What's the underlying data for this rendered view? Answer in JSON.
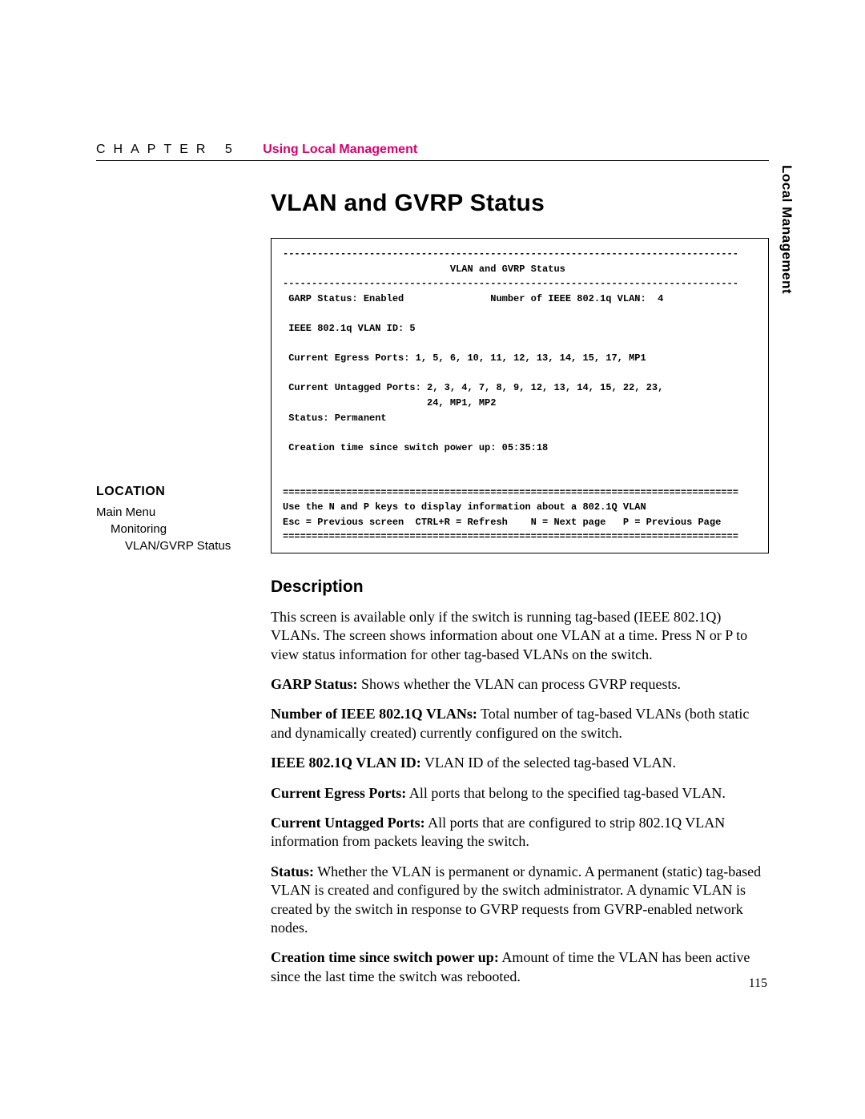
{
  "header": {
    "chapter_label": "CHAPTER 5",
    "chapter_title": "Using Local Management"
  },
  "side_tab": "Local Management",
  "main_title": "VLAN and GVRP Status",
  "terminal": {
    "dash_top": "-------------------------------------------------------------------------------",
    "title_line": "                             VLAN and GVRP Status",
    "dash_mid": "-------------------------------------------------------------------------------",
    "garp_line": " GARP Status: Enabled               Number of IEEE 802.1q VLAN:  4",
    "vlan_id_line": " IEEE 802.1q VLAN ID: 5",
    "egress_line": " Current Egress Ports: 1, 5, 6, 10, 11, 12, 13, 14, 15, 17, MP1",
    "untagged_line1": " Current Untagged Ports: 2, 3, 4, 7, 8, 9, 12, 13, 14, 15, 22, 23,",
    "untagged_line2": "                         24, MP1, MP2",
    "status_line": " Status: Permanent",
    "creation_line": " Creation time since switch power up: 05:35:18",
    "eq_top": "===============================================================================",
    "help_line": "Use the N and P keys to display information about a 802.1Q VLAN",
    "nav_line": "Esc = Previous screen  CTRL+R = Refresh    N = Next page   P = Previous Page",
    "eq_bot": "==============================================================================="
  },
  "location": {
    "heading": "LOCATION",
    "item1": "Main Menu",
    "item2": "Monitoring",
    "item3": "VLAN/GVRP Status"
  },
  "description": {
    "heading": "Description",
    "intro": "This screen is available only if the switch is running tag-based (IEEE 802.1Q) VLANs. The screen shows information about one VLAN at a time. Press N or P to view status information for other tag-based VLANs on the switch.",
    "items": [
      {
        "label": "GARP Status:",
        "text": " Shows whether the VLAN can process GVRP requests."
      },
      {
        "label": "Number of IEEE 802.1Q VLANs:",
        "text": " Total number of tag-based VLANs (both static and dynamically created) currently configured on the switch."
      },
      {
        "label": "IEEE 802.1Q VLAN ID:",
        "text": " VLAN ID of the selected tag-based VLAN."
      },
      {
        "label": "Current Egress Ports:",
        "text": " All ports that belong to the specified tag-based VLAN."
      },
      {
        "label": "Current Untagged Ports:",
        "text": " All ports that are configured to strip 802.1Q VLAN information from packets leaving the switch."
      },
      {
        "label": "Status:",
        "text": " Whether the VLAN is permanent or dynamic. A permanent (static) tag-based VLAN is created and configured by the switch administrator. A dynamic VLAN is created by the switch in response to GVRP requests from GVRP-enabled network nodes."
      },
      {
        "label": "Creation time since switch power up:",
        "text": " Amount of time the VLAN has been active since the last time the switch was rebooted."
      }
    ]
  },
  "page_number": "115",
  "colors": {
    "accent": "#d6006c",
    "text": "#000000",
    "background": "#ffffff"
  }
}
